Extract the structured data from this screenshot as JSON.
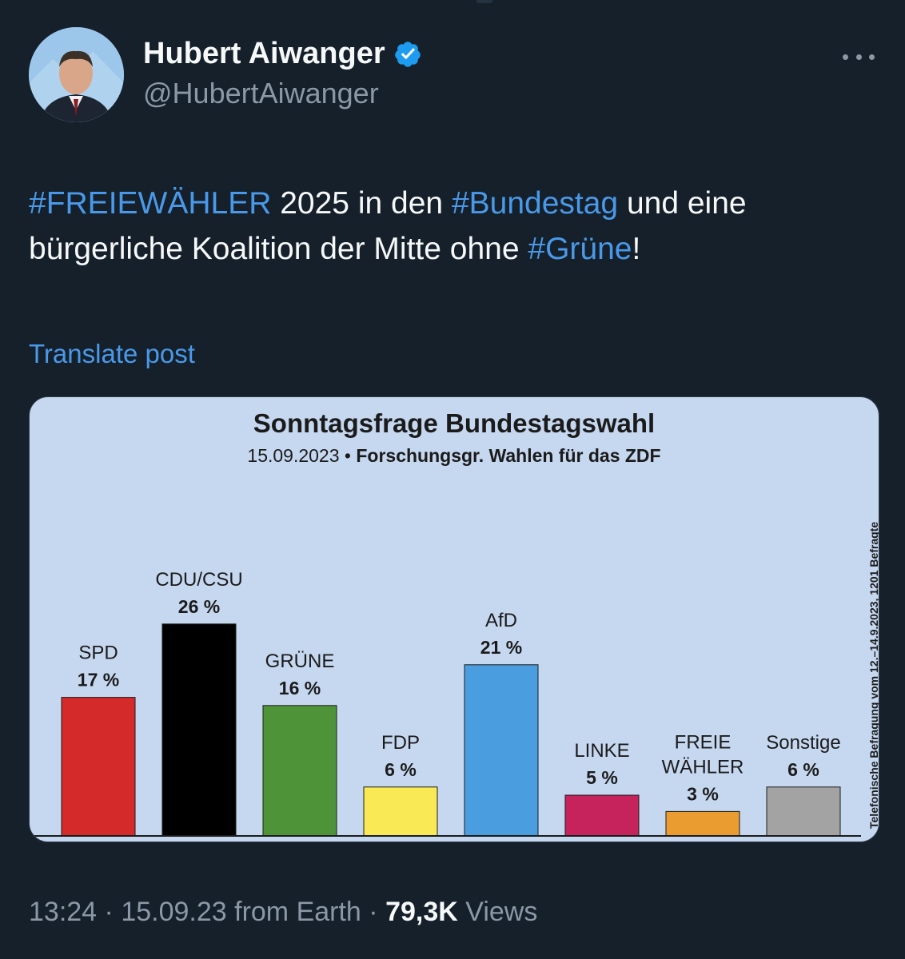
{
  "author": {
    "display_name": "Hubert Aiwanger",
    "handle": "@HubertAiwanger"
  },
  "tweet": {
    "segments": [
      {
        "text": "#FREIEWÄHLER",
        "hashtag": true
      },
      {
        "text": " 2025 in den ",
        "hashtag": false
      },
      {
        "text": "#Bundestag",
        "hashtag": true
      },
      {
        "text": " und eine bürgerliche Koalition der Mitte ohne ",
        "hashtag": false
      },
      {
        "text": "#Grüne",
        "hashtag": true
      },
      {
        "text": "!",
        "hashtag": false
      }
    ]
  },
  "translate_label": "Translate post",
  "chart_data": {
    "type": "bar",
    "title": "Sonntagsfrage Bundestagswahl",
    "subtitle_date": "15.09.2023 •",
    "subtitle_source": "Forschungsgr. Wahlen für das ZDF",
    "side_note": "Telefonische Befragung vom 12.–14.9.2023, 1201 Befragte",
    "categories": [
      "SPD",
      "CDU/CSU",
      "GRÜNE",
      "FDP",
      "AfD",
      "LINKE",
      "FREIE WÄHLER",
      "Sonstige"
    ],
    "category_lines": [
      [
        "SPD"
      ],
      [
        "CDU/CSU"
      ],
      [
        "GRÜNE"
      ],
      [
        "FDP"
      ],
      [
        "AfD"
      ],
      [
        "LINKE"
      ],
      [
        "FREIE",
        "WÄHLER"
      ],
      [
        "Sonstige"
      ]
    ],
    "values": [
      17,
      26,
      16,
      6,
      21,
      5,
      3,
      6
    ],
    "value_labels": [
      "17 %",
      "26 %",
      "16 %",
      "6 %",
      "21 %",
      "5 %",
      "3 %",
      "6 %"
    ],
    "colors": [
      "#d42a29",
      "#000000",
      "#4f9338",
      "#f9ea55",
      "#4a9ee0",
      "#c6225c",
      "#eb9c31",
      "#a3a3a3"
    ],
    "xlabel": "",
    "ylabel": "",
    "grid": false,
    "legend": "none"
  },
  "meta": {
    "time": "13:24",
    "date": "15.09.23",
    "source": "from Earth",
    "views_count": "79,3K",
    "views_label": "Views"
  }
}
